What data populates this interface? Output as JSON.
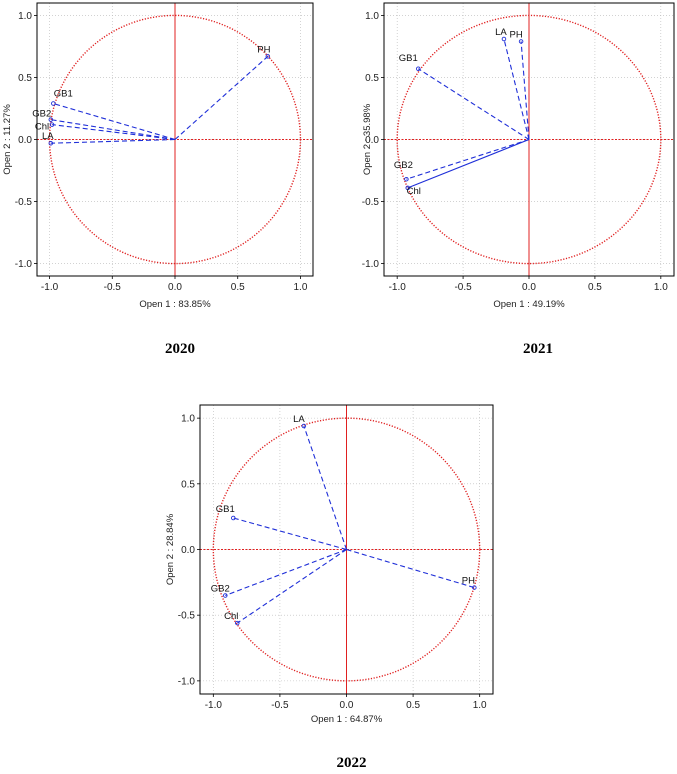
{
  "chart_data": [
    {
      "type": "scatter",
      "caption": "2020",
      "xlabel": "Open 1 : 83.85%",
      "ylabel": "Open 2 : 11.27%",
      "xlim": [
        -1.0,
        1.0
      ],
      "ylim": [
        -1.0,
        1.0
      ],
      "xticks": [
        "-1.0",
        "-0.5",
        "0.0",
        "0.5",
        "1.0"
      ],
      "yticks": [
        "-1.0",
        "-0.5",
        "0.0",
        "0.5",
        "1.0"
      ],
      "grid": true,
      "points": [
        {
          "label": "PH",
          "x": 0.74,
          "y": 0.67,
          "line": "dash",
          "dx": -4,
          "dy": -4
        },
        {
          "label": "GB1",
          "x": -0.97,
          "y": 0.29,
          "line": "dash",
          "dx": 10,
          "dy": -7
        },
        {
          "label": "GB2",
          "x": -0.99,
          "y": 0.16,
          "line": "dash",
          "dx": -9,
          "dy": -3
        },
        {
          "label": "Chl",
          "x": -0.98,
          "y": 0.12,
          "line": "dash",
          "dx": -10,
          "dy": 5
        },
        {
          "label": "LA",
          "x": -0.99,
          "y": -0.03,
          "line": "dash",
          "dx": -3,
          "dy": -4
        }
      ]
    },
    {
      "type": "scatter",
      "caption": "2021",
      "xlabel": "Open 1 : 49.19%",
      "ylabel": "Open 2 : 35.98%",
      "xlim": [
        -1.0,
        1.0
      ],
      "ylim": [
        -1.0,
        1.0
      ],
      "xticks": [
        "-1.0",
        "-0.5",
        "0.0",
        "0.5",
        "1.0"
      ],
      "yticks": [
        "-1.0",
        "-0.5",
        "0.0",
        "0.5",
        "1.0"
      ],
      "grid": true,
      "points": [
        {
          "label": "LA",
          "x": -0.19,
          "y": 0.81,
          "line": "dash",
          "dx": -3,
          "dy": -4
        },
        {
          "label": "PH",
          "x": -0.06,
          "y": 0.79,
          "line": "dash",
          "dx": -5,
          "dy": -4
        },
        {
          "label": "GB1",
          "x": -0.84,
          "y": 0.57,
          "line": "dash",
          "dx": -10,
          "dy": -8
        },
        {
          "label": "GB2",
          "x": -0.93,
          "y": -0.32,
          "line": "dash",
          "dx": -3,
          "dy": -11
        },
        {
          "label": "Chl",
          "x": -0.92,
          "y": -0.39,
          "line": "solid",
          "dx": 6,
          "dy": 6
        }
      ]
    },
    {
      "type": "scatter",
      "caption": "2022",
      "xlabel": "Open 1 : 64.87%",
      "ylabel": "Open 2 : 28.84%",
      "xlim": [
        -1.0,
        1.0
      ],
      "ylim": [
        -1.0,
        1.0
      ],
      "xticks": [
        "-1.0",
        "-0.5",
        "0.0",
        "0.5",
        "1.0"
      ],
      "yticks": [
        "-1.0",
        "-0.5",
        "0.0",
        "0.5",
        "1.0"
      ],
      "grid": true,
      "points": [
        {
          "label": "LA",
          "x": -0.32,
          "y": 0.94,
          "line": "dash",
          "dx": -5,
          "dy": -4
        },
        {
          "label": "GB1",
          "x": -0.85,
          "y": 0.24,
          "line": "dash",
          "dx": -8,
          "dy": -6
        },
        {
          "label": "GB2",
          "x": -0.91,
          "y": -0.35,
          "line": "dash",
          "dx": -5,
          "dy": -4
        },
        {
          "label": "Chl",
          "x": -0.82,
          "y": -0.56,
          "line": "dash",
          "dx": -6,
          "dy": -4
        },
        {
          "label": "PH",
          "x": 0.96,
          "y": -0.29,
          "line": "dash",
          "dx": -6,
          "dy": -4
        }
      ]
    }
  ],
  "colors": {
    "circle": "#e02020",
    "axes": "#e02020",
    "vectors": "#1f2fd8",
    "grid": "#b8b8b8",
    "frame": "#000000"
  }
}
